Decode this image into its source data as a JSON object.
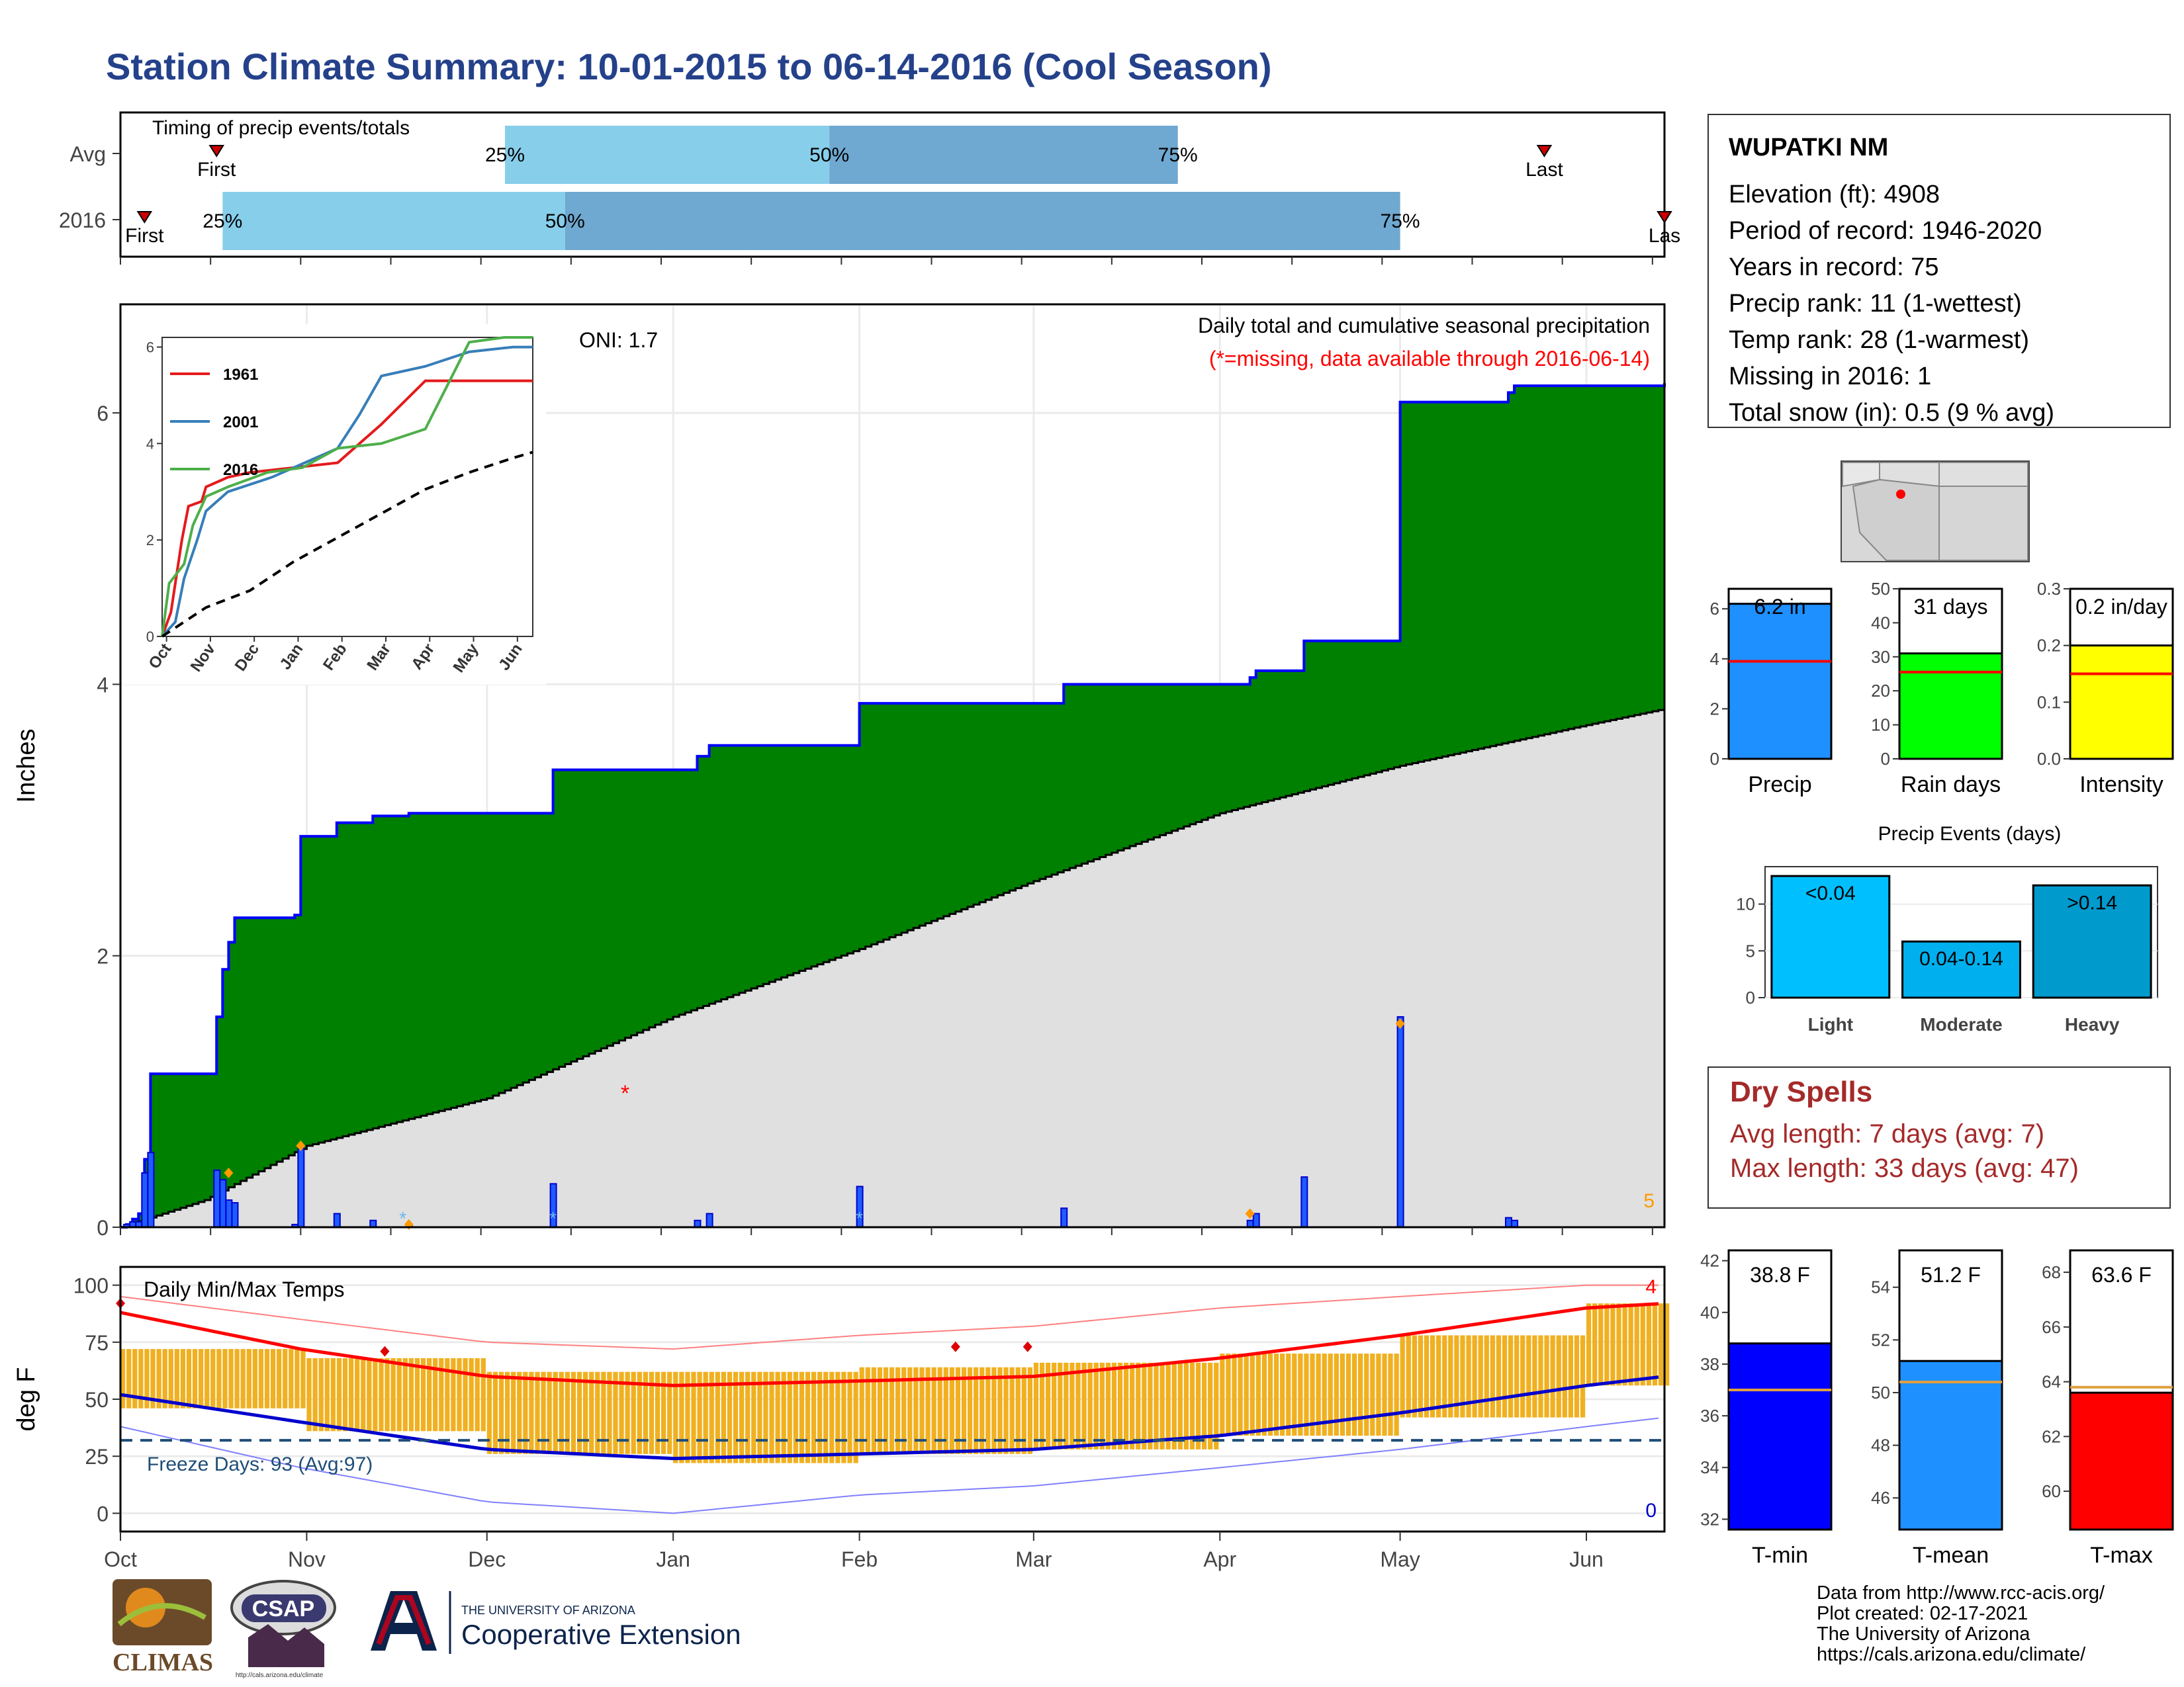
{
  "title": "Station Climate Summary: 10-01-2015 to 06-14-2016 (Cool Season)",
  "colors": {
    "title": "#24418a",
    "precip_fill": "#008000",
    "precip_line": "#0000ff",
    "avg_fill": "#e0e0e0",
    "bar_light": "#87ceeb",
    "bar_dark": "#6fa8d0",
    "temp_bar": "#f0b020",
    "avg_max": "#ff0000",
    "avg_min": "#0000cd",
    "dry_spells": "#a52a2a"
  },
  "station": {
    "name": "WUPATKI NM",
    "lines": [
      "Elevation (ft): 4908",
      "Period of record: 1946-2020",
      "Years in record: 75",
      "Precip rank: 11 (1-wettest)",
      "Temp rank: 28 (1-warmest)",
      "Missing in 2016: 1",
      "Total snow (in): 0.5 (9 % avg)"
    ]
  },
  "dry_spells": {
    "title": "Dry Spells",
    "avg": "Avg length: 7 days (avg: 7)",
    "max": "Max length: 33 days (avg: 47)"
  },
  "credits": [
    "Data from http://www.rcc-acis.org/",
    "Plot created: 02-17-2021",
    "The University of Arizona",
    "https://cals.arizona.edu/climate/"
  ],
  "logos": {
    "climas": "CLIMAS",
    "csap": "CSAP",
    "csap_url": "http://cals.arizona.edu/climate",
    "ua_line1": "THE UNIVERSITY OF ARIZONA",
    "ua_line2": "Cooperative Extension"
  },
  "chart_data": [
    {
      "id": "timing",
      "type": "bar",
      "title": "Timing of precip events/totals",
      "rows": [
        {
          "label": "Avg",
          "first": "2015-10-17",
          "q25": "2015-12-04",
          "q50": "2016-01-27",
          "q75": "2016-03-25",
          "last": "2016-05-25",
          "first_label": "First",
          "last_label": "Last"
        },
        {
          "label": "2016",
          "first": "2015-10-05",
          "q25": "2015-10-18",
          "q50": "2015-12-14",
          "q75": "2016-05-01",
          "last": "2016-06-14",
          "first_label": "First",
          "last_label": "Las"
        }
      ],
      "percent_labels": [
        "25%",
        "50%",
        "75%"
      ]
    },
    {
      "id": "precip",
      "type": "area",
      "title": "Daily total and cumulative seasonal precipitation",
      "subtitle": "(*=missing, data available through 2016-06-14)",
      "oni": "ONI: 1.7",
      "ylabel": "Inches",
      "ylim": [
        0,
        6.8
      ],
      "yticks": [
        0,
        2,
        4,
        6
      ],
      "xlim": [
        "2015-10-01",
        "2016-06-14"
      ],
      "xticks": [
        {
          "date": "2015-10-01",
          "label": "Oct"
        },
        {
          "date": "2015-11-01",
          "label": "Nov"
        },
        {
          "date": "2015-12-01",
          "label": "Dec"
        },
        {
          "date": "2016-01-01",
          "label": "Jan"
        },
        {
          "date": "2016-02-01",
          "label": "Feb"
        },
        {
          "date": "2016-03-01",
          "label": "Mar"
        },
        {
          "date": "2016-04-01",
          "label": "Apr"
        },
        {
          "date": "2016-05-01",
          "label": "May"
        },
        {
          "date": "2016-06-01",
          "label": "Jun"
        }
      ],
      "cumulative_2016": [
        [
          "2015-10-01",
          0.0
        ],
        [
          "2015-10-02",
          0.02
        ],
        [
          "2015-10-03",
          0.06
        ],
        [
          "2015-10-04",
          0.1
        ],
        [
          "2015-10-05",
          0.5
        ],
        [
          "2015-10-06",
          1.13
        ],
        [
          "2015-10-17",
          1.55
        ],
        [
          "2015-10-18",
          1.9
        ],
        [
          "2015-10-19",
          2.1
        ],
        [
          "2015-10-20",
          2.28
        ],
        [
          "2015-10-30",
          2.3
        ],
        [
          "2015-10-31",
          2.88
        ],
        [
          "2015-11-06",
          2.98
        ],
        [
          "2015-11-12",
          3.03
        ],
        [
          "2015-11-18",
          3.05
        ],
        [
          "2015-12-12",
          3.37
        ],
        [
          "2016-01-05",
          3.47
        ],
        [
          "2016-01-07",
          3.55
        ],
        [
          "2016-02-01",
          3.86
        ],
        [
          "2016-03-06",
          4.0
        ],
        [
          "2016-04-06",
          4.05
        ],
        [
          "2016-04-07",
          4.1
        ],
        [
          "2016-04-15",
          4.32
        ],
        [
          "2016-05-01",
          6.08
        ],
        [
          "2016-05-19",
          6.15
        ],
        [
          "2016-05-20",
          6.2
        ],
        [
          "2016-06-14",
          6.22
        ]
      ],
      "average": [
        [
          "2015-10-01",
          0.0
        ],
        [
          "2015-10-15",
          0.2
        ],
        [
          "2015-11-01",
          0.6
        ],
        [
          "2015-12-01",
          0.95
        ],
        [
          "2016-01-01",
          1.55
        ],
        [
          "2016-02-01",
          2.05
        ],
        [
          "2016-03-01",
          2.55
        ],
        [
          "2016-04-01",
          3.05
        ],
        [
          "2016-05-01",
          3.4
        ],
        [
          "2016-06-01",
          3.7
        ],
        [
          "2016-06-14",
          3.82
        ]
      ],
      "daily": [
        [
          "2015-10-02",
          0.02
        ],
        [
          "2015-10-03",
          0.04
        ],
        [
          "2015-10-04",
          0.04
        ],
        [
          "2015-10-05",
          0.4
        ],
        [
          "2015-10-06",
          0.55
        ],
        [
          "2015-10-17",
          0.42
        ],
        [
          "2015-10-18",
          0.35
        ],
        [
          "2015-10-19",
          0.2
        ],
        [
          "2015-10-20",
          0.18
        ],
        [
          "2015-10-30",
          0.02
        ],
        [
          "2015-10-31",
          0.58
        ],
        [
          "2015-11-06",
          0.1
        ],
        [
          "2015-11-12",
          0.05
        ],
        [
          "2015-11-18",
          0.02
        ],
        [
          "2015-12-12",
          0.32
        ],
        [
          "2016-01-05",
          0.05
        ],
        [
          "2016-01-07",
          0.1
        ],
        [
          "2016-02-01",
          0.3
        ],
        [
          "2016-03-06",
          0.14
        ],
        [
          "2016-04-06",
          0.05
        ],
        [
          "2016-04-07",
          0.1
        ],
        [
          "2016-04-15",
          0.37
        ],
        [
          "2016-05-01",
          1.55
        ],
        [
          "2016-05-19",
          0.07
        ],
        [
          "2016-05-20",
          0.05
        ]
      ],
      "record_markers": [
        [
          "2015-10-19",
          0.4
        ],
        [
          "2015-10-31",
          0.6
        ],
        [
          "2015-11-18",
          0.02
        ],
        [
          "2016-04-06",
          0.1
        ],
        [
          "2016-05-01",
          1.5
        ]
      ],
      "snow_markers": [
        "2015-11-17",
        "2015-12-12",
        "2016-02-01"
      ],
      "missing_markers": [
        [
          "2015-12-24",
          1.0
        ]
      ],
      "record_count": "5",
      "inset": {
        "type": "line",
        "ylim": [
          0,
          6.2
        ],
        "yticks": [
          0,
          2,
          4,
          6
        ],
        "xticks": [
          "Oct",
          "Nov",
          "Dec",
          "Jan",
          "Feb",
          "Mar",
          "Apr",
          "May",
          "Jun"
        ],
        "series": [
          {
            "name": "1961",
            "color": "#e41a1c",
            "values": [
              [
                0,
                0.0
              ],
              [
                0.2,
                0.5
              ],
              [
                0.3,
                1.1
              ],
              [
                0.45,
                2.0
              ],
              [
                0.6,
                2.7
              ],
              [
                0.9,
                2.8
              ],
              [
                1.0,
                3.1
              ],
              [
                1.5,
                3.3
              ],
              [
                2.0,
                3.4
              ],
              [
                3.0,
                3.5
              ],
              [
                4.0,
                3.6
              ],
              [
                4.5,
                4.0
              ],
              [
                5.0,
                4.4
              ],
              [
                6.0,
                5.3
              ],
              [
                7.0,
                5.3
              ],
              [
                8.0,
                5.3
              ],
              [
                8.45,
                5.3
              ]
            ]
          },
          {
            "name": "2001",
            "color": "#377eb8",
            "values": [
              [
                0,
                0.0
              ],
              [
                0.3,
                0.3
              ],
              [
                0.5,
                1.2
              ],
              [
                0.8,
                2.0
              ],
              [
                1.0,
                2.6
              ],
              [
                1.5,
                3.0
              ],
              [
                2.5,
                3.3
              ],
              [
                3.5,
                3.7
              ],
              [
                4.0,
                3.9
              ],
              [
                4.5,
                4.6
              ],
              [
                5.0,
                5.4
              ],
              [
                6.0,
                5.6
              ],
              [
                7.0,
                5.9
              ],
              [
                8.0,
                6.0
              ],
              [
                8.45,
                6.0
              ]
            ]
          },
          {
            "name": "2016",
            "color": "#4daf4a",
            "values": [
              [
                0,
                0.0
              ],
              [
                0.16,
                1.1
              ],
              [
                0.5,
                1.5
              ],
              [
                0.7,
                2.3
              ],
              [
                1.0,
                2.9
              ],
              [
                1.5,
                3.1
              ],
              [
                2.4,
                3.4
              ],
              [
                3.2,
                3.5
              ],
              [
                4.0,
                3.9
              ],
              [
                5.0,
                4.0
              ],
              [
                6.0,
                4.3
              ],
              [
                7.0,
                6.1
              ],
              [
                7.8,
                6.2
              ],
              [
                8.45,
                6.2
              ]
            ]
          },
          {
            "name": "",
            "color": "#000000",
            "dash": true,
            "values": [
              [
                0,
                0.0
              ],
              [
                1.0,
                0.6
              ],
              [
                2.0,
                0.95
              ],
              [
                3.0,
                1.55
              ],
              [
                4.0,
                2.05
              ],
              [
                5.0,
                2.55
              ],
              [
                6.0,
                3.05
              ],
              [
                7.0,
                3.4
              ],
              [
                8.0,
                3.7
              ],
              [
                8.45,
                3.82
              ]
            ]
          }
        ]
      }
    },
    {
      "id": "temps",
      "type": "bar",
      "title": "Daily Min/Max Temps",
      "ylabel": "deg F",
      "ylim": [
        -8,
        108
      ],
      "yticks": [
        0,
        25,
        50,
        75,
        100
      ],
      "freeze_line": 32,
      "freeze_label": "Freeze Days: 93 (Avg:97)",
      "record_high_count": "4",
      "record_low_count": "0",
      "tmax_monthly": [
        72,
        68,
        62,
        62,
        64,
        66,
        70,
        78,
        92
      ],
      "tmin_monthly": [
        46,
        36,
        26,
        22,
        26,
        28,
        34,
        42,
        56
      ],
      "record_high_markers": [
        [
          "2015-10-01",
          92
        ],
        [
          "2015-11-14",
          71
        ],
        [
          "2016-02-17",
          73
        ],
        [
          "2016-02-29",
          73
        ]
      ],
      "avg_max": [
        [
          0,
          88
        ],
        [
          30,
          72
        ],
        [
          61,
          60
        ],
        [
          92,
          56
        ],
        [
          123,
          58
        ],
        [
          152,
          60
        ],
        [
          183,
          68
        ],
        [
          213,
          78
        ],
        [
          244,
          90
        ],
        [
          257,
          92
        ]
      ],
      "avg_min": [
        [
          0,
          52
        ],
        [
          30,
          40
        ],
        [
          61,
          28
        ],
        [
          92,
          24
        ],
        [
          123,
          26
        ],
        [
          152,
          28
        ],
        [
          183,
          34
        ],
        [
          213,
          44
        ],
        [
          244,
          56
        ],
        [
          257,
          60
        ]
      ],
      "extreme_max": [
        [
          0,
          95
        ],
        [
          30,
          85
        ],
        [
          61,
          75
        ],
        [
          92,
          72
        ],
        [
          123,
          78
        ],
        [
          152,
          82
        ],
        [
          183,
          90
        ],
        [
          213,
          95
        ],
        [
          244,
          100
        ],
        [
          257,
          100
        ]
      ],
      "extreme_min": [
        [
          0,
          38
        ],
        [
          30,
          20
        ],
        [
          61,
          5
        ],
        [
          92,
          0
        ],
        [
          123,
          8
        ],
        [
          152,
          12
        ],
        [
          183,
          20
        ],
        [
          213,
          28
        ],
        [
          244,
          38
        ],
        [
          257,
          42
        ]
      ]
    },
    {
      "id": "precip-summary",
      "type": "bar",
      "panels": [
        {
          "label": "Precip",
          "value": 6.2,
          "value_label": "6.2 in",
          "avg": 3.9,
          "ylim": [
            0,
            6.8
          ],
          "yticks": [
            0,
            2,
            4,
            6
          ],
          "color": "#1e90ff"
        },
        {
          "label": "Rain days",
          "value": 31,
          "value_label": "31 days",
          "avg": 25.5,
          "ylim": [
            0,
            50
          ],
          "yticks": [
            0,
            10,
            20,
            30,
            40,
            50
          ],
          "color": "#00ff00"
        },
        {
          "label": "Intensity",
          "value": 0.2,
          "value_label": "0.2 in/day",
          "avg": 0.15,
          "ylim": [
            0,
            0.3
          ],
          "yticks": [
            0.0,
            0.1,
            0.2,
            0.3
          ],
          "color": "#ffff00"
        }
      ]
    },
    {
      "id": "precip-events",
      "type": "bar",
      "title": "Precip Events (days)",
      "categories": [
        "Light",
        "Moderate",
        "Heavy"
      ],
      "values": [
        13,
        6,
        12
      ],
      "labels": [
        "<0.04",
        "0.04-0.14",
        ">0.14"
      ],
      "colors": [
        "#00bfff",
        "#00b0ee",
        "#009acd"
      ],
      "ylim": [
        0,
        14
      ],
      "yticks": [
        0,
        5,
        10
      ]
    },
    {
      "id": "temp-summary",
      "type": "bar",
      "panels": [
        {
          "label": "T-min",
          "value": 38.8,
          "value_label": "38.8 F",
          "avg": 37.0,
          "ylim": [
            31.6,
            42.4
          ],
          "yticks": [
            32,
            34,
            36,
            38,
            40,
            42
          ],
          "color": "#0000ff"
        },
        {
          "label": "T-mean",
          "value": 51.2,
          "value_label": "51.2 F",
          "avg": 50.4,
          "ylim": [
            44.8,
            55.4
          ],
          "yticks": [
            46,
            48,
            50,
            52,
            54
          ],
          "color": "#1e90ff"
        },
        {
          "label": "T-max",
          "value": 63.6,
          "value_label": "63.6 F",
          "avg": 63.8,
          "ylim": [
            58.6,
            68.8
          ],
          "yticks": [
            60,
            62,
            64,
            66,
            68
          ],
          "color": "#ff0000"
        }
      ]
    }
  ]
}
